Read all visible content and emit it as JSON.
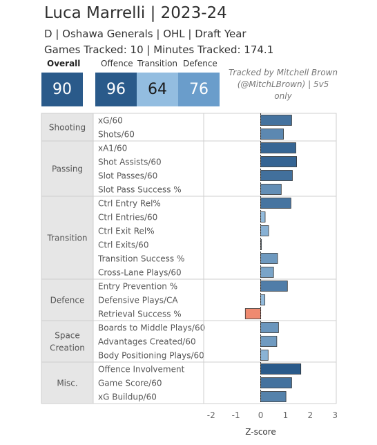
{
  "header": {
    "title": "Luca Marrelli | 2023-24",
    "subtitle": "D | Oshawa Generals | OHL | Draft Year",
    "games_tracked": "Games Tracked: 10 | Minutes Tracked: 174.1"
  },
  "scores": {
    "overall_label": "Overall",
    "overall_value": "90",
    "offence_label": "Offence",
    "offence_value": "96",
    "transition_label": "Transition",
    "transition_value": "64",
    "defence_label": "Defence",
    "defence_value": "76"
  },
  "credit": {
    "line1": "Tracked by Mitchell Brown",
    "line2": "(@MitchLBrown) | 5v5",
    "line3": "only"
  },
  "colors": {
    "overall_box": "#2a5a8a",
    "offence_box": "#2a5a8a",
    "transition_box": "#93bde0",
    "defence_box": "#6a9dcb",
    "negative_bar": "#ef8a70",
    "category_bg": "#e6e6e6"
  },
  "chart_data": {
    "type": "bar",
    "orientation": "horizontal",
    "xlabel": "Z-score",
    "xlim": [
      -2.3,
      3.05
    ],
    "xticks": [
      -2,
      -1,
      0,
      1,
      2,
      3
    ],
    "zero_line": "dashed",
    "groups": [
      {
        "name": "Shooting",
        "metrics": [
          {
            "label": "xG/60",
            "value": 1.25
          },
          {
            "label": "Shots/60",
            "value": 0.92
          }
        ]
      },
      {
        "name": "Passing",
        "metrics": [
          {
            "label": "xA1/60",
            "value": 1.42
          },
          {
            "label": "Shot Assists/60",
            "value": 1.45
          },
          {
            "label": "Slot Passes/60",
            "value": 1.28
          },
          {
            "label": "Slot Pass Success %",
            "value": 0.83
          }
        ]
      },
      {
        "name": "Transition",
        "metrics": [
          {
            "label": "Ctrl Entry Rel%",
            "value": 1.22
          },
          {
            "label": "Ctrl Entries/60",
            "value": 0.18
          },
          {
            "label": "Ctrl Exit Rel%",
            "value": 0.32
          },
          {
            "label": "Ctrl Exits/60",
            "value": 0.03
          },
          {
            "label": "Transition Success %",
            "value": 0.68
          },
          {
            "label": "Cross-Lane Plays/60",
            "value": 0.52
          }
        ]
      },
      {
        "name": "Defence",
        "metrics": [
          {
            "label": "Entry Prevention %",
            "value": 1.08
          },
          {
            "label": "Defensive Plays/CA",
            "value": 0.17
          },
          {
            "label": "Retrieval Success %",
            "value": -0.62
          }
        ]
      },
      {
        "name": "Space Creation",
        "metrics": [
          {
            "label": "Boards to Middle Plays/60",
            "value": 0.72
          },
          {
            "label": "Advantages Created/60",
            "value": 0.65
          },
          {
            "label": "Body Positioning Plays/60",
            "value": 0.3
          }
        ]
      },
      {
        "name": "Misc.",
        "metrics": [
          {
            "label": "Offence Involvement",
            "value": 1.62
          },
          {
            "label": "Game Score/60",
            "value": 1.25
          },
          {
            "label": "xG Buildup/60",
            "value": 1.02
          }
        ]
      }
    ]
  }
}
